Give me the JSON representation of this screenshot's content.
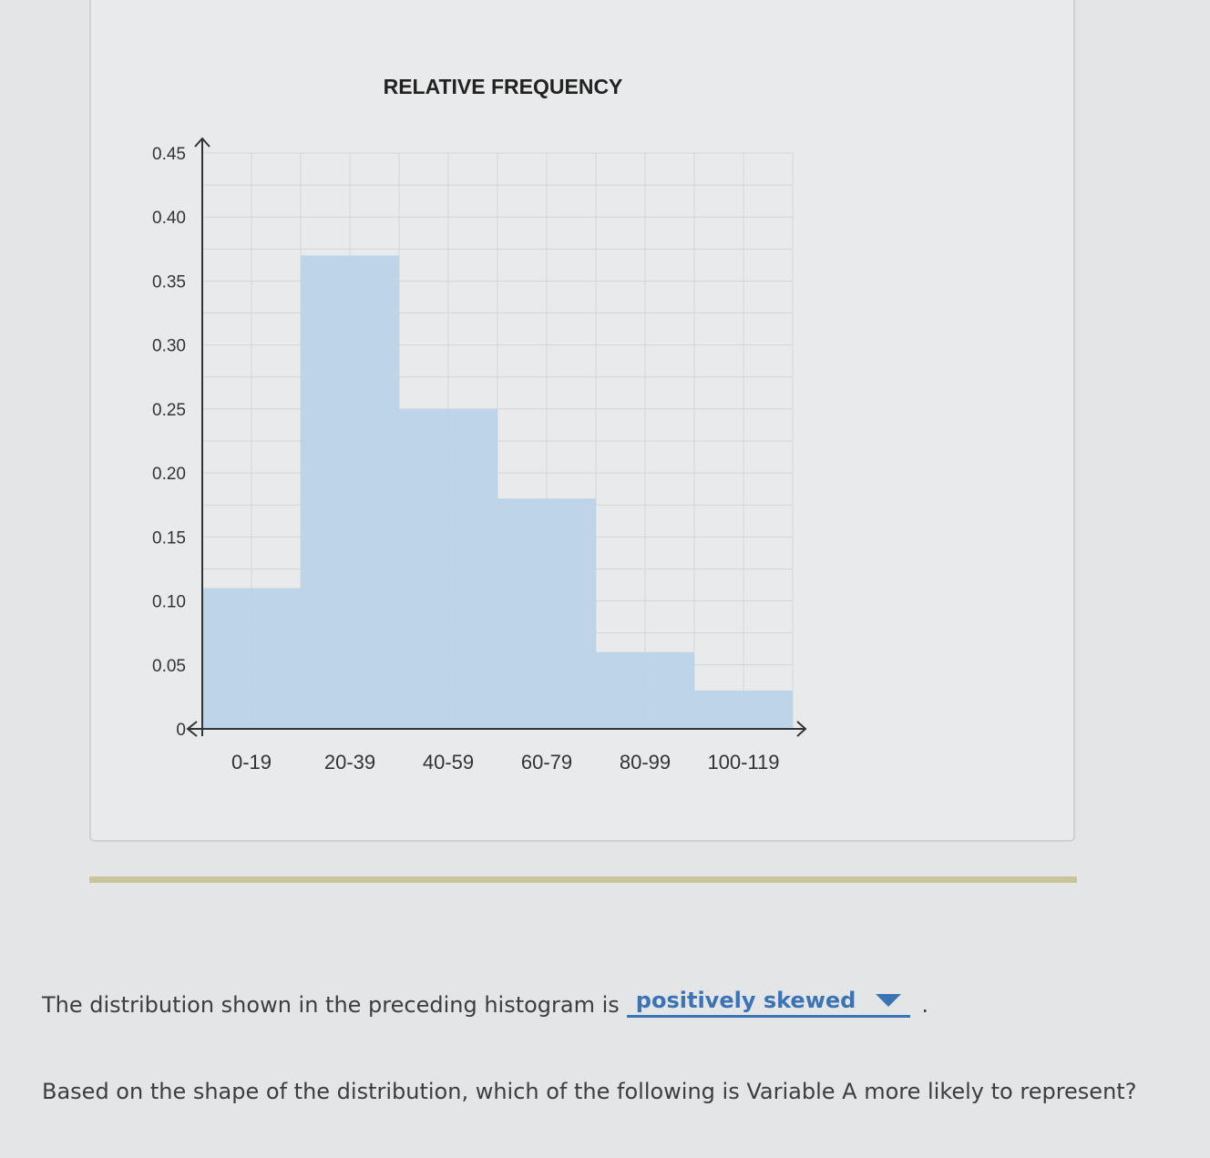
{
  "chart_data": {
    "type": "bar",
    "title": "RELATIVE FREQUENCY",
    "categories": [
      "0-19",
      "20-39",
      "40-59",
      "60-79",
      "80-99",
      "100-119"
    ],
    "values": [
      0.11,
      0.37,
      0.25,
      0.18,
      0.06,
      0.03
    ],
    "yticks": [
      "0",
      "0.05",
      "0.10",
      "0.15",
      "0.20",
      "0.25",
      "0.30",
      "0.35",
      "0.40",
      "0.45"
    ],
    "ylim": [
      0,
      0.45
    ],
    "grid": true,
    "bar_color": "#b9d3e9"
  },
  "question1": {
    "prefix": "The distribution shown in the preceding histogram is",
    "answer": "positively skewed",
    "suffix": "."
  },
  "question2": {
    "text": "Based on the shape of the distribution, which of the following is Variable A more likely to represent?"
  },
  "colors": {
    "accent": "#3a74b5",
    "divider": "#c9c59a"
  }
}
